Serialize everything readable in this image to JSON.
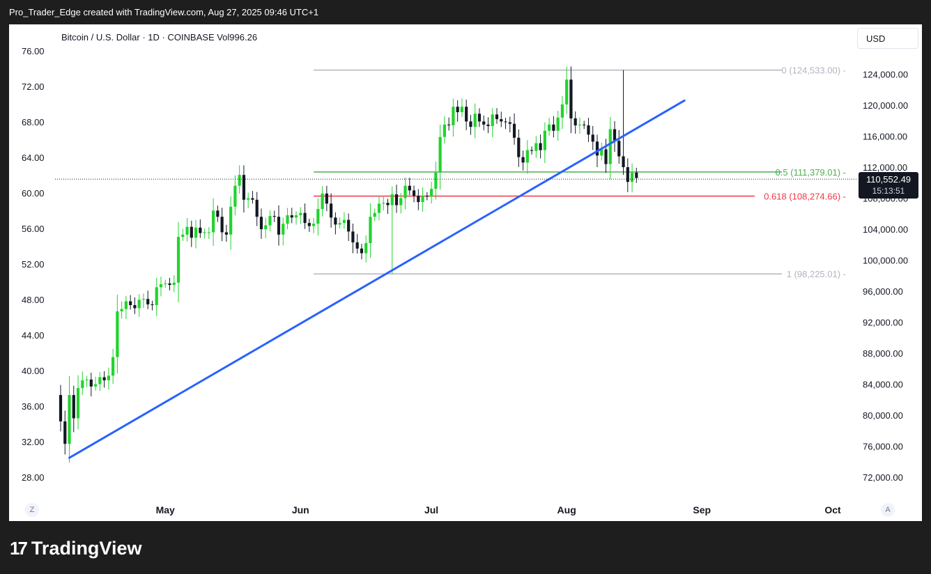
{
  "header": {
    "attribution": "Pro_Trader_Edge created with TradingView.com, Aug 27, 2025 09:46 UTC+1"
  },
  "chart_header": {
    "symbol_line": "Bitcoin / U.S. Dollar · 1D · COINBASE  Vol996.26"
  },
  "currency_button": "USD",
  "last_price": {
    "price": "110,552.49",
    "countdown": "15:13:51"
  },
  "footer": {
    "zoom_left": "Z",
    "auto_right": "A",
    "brand": "TradingView"
  },
  "colors": {
    "up": "#22d32e",
    "down": "#131722",
    "trendline": "#2962ff",
    "fib_mid": "#4caf50",
    "fib_618": "#f23645",
    "fib_edge": "#b2b5be"
  },
  "chart_data": {
    "type": "candlestick",
    "left_axis": {
      "ticks": [
        "76.00",
        "72.00",
        "68.00",
        "64.00",
        "60.00",
        "56.00",
        "52.00",
        "48.00",
        "44.00",
        "40.00",
        "36.00",
        "32.00",
        "28.00"
      ],
      "range": [
        28,
        76
      ]
    },
    "right_axis": {
      "ticks": [
        "124,000.00",
        "120,000.00",
        "116,000.00",
        "112,000.00",
        "108,000.00",
        "104,000.00",
        "100,000.00",
        "96,000.00",
        "92,000.00",
        "88,000.00",
        "84,000.00",
        "80,000.00",
        "76,000.00",
        "72,000.00"
      ],
      "range": [
        72000,
        124000
      ]
    },
    "x_axis": {
      "labels": [
        "May",
        "Jun",
        "Jul",
        "Aug",
        "Sep",
        "Oct"
      ]
    },
    "fibonacci": [
      {
        "label": "0 (124,533.00)",
        "price": 124533.0,
        "color": "#b2b5be"
      },
      {
        "label": "0.5 (111,379.01)",
        "price": 111379.01,
        "color": "#4caf50"
      },
      {
        "label": "0.618 (108,274.66)",
        "price": 108274.66,
        "color": "#f23645"
      },
      {
        "label": "1 (98,225.01)",
        "price": 98225.01,
        "color": "#b2b5be"
      }
    ],
    "trendline": {
      "from": [
        "2025-04-09",
        74500
      ],
      "to": [
        "2025-08-28",
        120600
      ]
    },
    "candles": {
      "start_date": "2025-04-07",
      "closes": [
        79200,
        76300,
        82600,
        79600,
        83500,
        84500,
        84600,
        83700,
        84000,
        84900,
        84500,
        85100,
        87500,
        93400,
        93700,
        94700,
        94200,
        93800,
        94900,
        95000,
        94300,
        94200,
        96500,
        96900,
        97000,
        96800,
        97100,
        103000,
        103300,
        104300,
        102900,
        104200,
        103500,
        103600,
        103600,
        106400,
        105600,
        103600,
        103300,
        106900,
        109600,
        111000,
        107800,
        108000,
        107800,
        105600,
        104000,
        104500,
        105700,
        105600,
        103300,
        104700,
        105800,
        105500,
        105800,
        106100,
        104800,
        104400,
        104700,
        106600,
        108600,
        107300,
        105500,
        104600,
        104800,
        105200,
        103700,
        102300,
        101500,
        100900,
        102200,
        105600,
        106100,
        107300,
        107400,
        107100,
        108500,
        107100,
        108000,
        109600,
        109000,
        108300,
        107500,
        108300,
        108200,
        109200,
        111300,
        115900,
        117500,
        117400,
        119800,
        119100,
        119800,
        117900,
        117200,
        118900,
        117900,
        117500,
        117300,
        118800,
        118200,
        117900,
        117800,
        117600,
        115800,
        113300,
        112600,
        114200,
        114100,
        115100,
        114200,
        116700,
        117500,
        116700,
        118400,
        120100,
        123300,
        118300,
        117400,
        117500,
        117400,
        116200,
        115300,
        113500,
        114300,
        112400,
        116900,
        115400,
        113400,
        112000,
        110100,
        111300,
        110600
      ],
      "special": {
        "2025-06-22": {
          "low": 98225.01
        },
        "2025-08-14": {
          "high": 124533.0
        }
      },
      "note": "up candles green (#22d32e), down candles dark (#131722)"
    }
  }
}
